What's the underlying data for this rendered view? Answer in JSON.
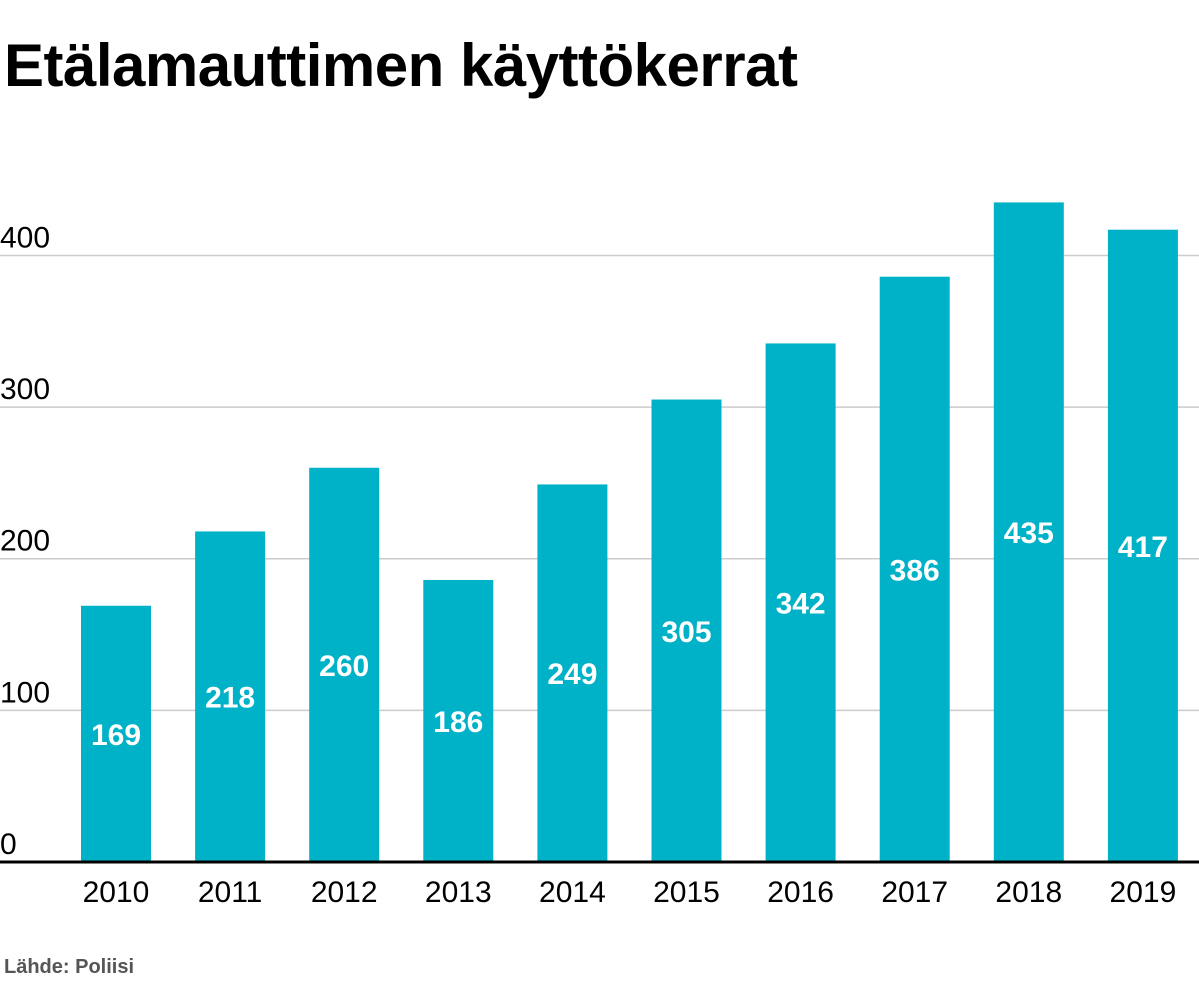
{
  "chart_data": {
    "type": "bar",
    "title": "Etälamauttimen käyttökerrat",
    "categories": [
      "2010",
      "2011",
      "2012",
      "2013",
      "2014",
      "2015",
      "2016",
      "2017",
      "2018",
      "2019"
    ],
    "values": [
      169,
      218,
      260,
      186,
      249,
      305,
      342,
      386,
      435,
      417
    ],
    "data_labels": [
      "169",
      "218",
      "260",
      "186",
      "249",
      "305",
      "342",
      "386",
      "435",
      "417"
    ],
    "ylim": [
      0,
      435
    ],
    "yticks": [
      0,
      100,
      200,
      300,
      400
    ],
    "ytick_labels": [
      "0",
      "100",
      "200",
      "300",
      "400"
    ],
    "grid": true,
    "bar_color": "#00b2c8",
    "data_label_color": "#ffffff",
    "gridline_color": "#cccccc",
    "baseline_color": "#000000"
  },
  "source": "Lähde: Poliisi"
}
